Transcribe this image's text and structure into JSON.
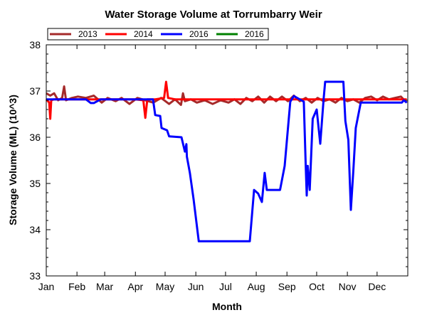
{
  "chart_data": {
    "type": "line",
    "title": "Water Storage Volume at Torrumbarry Weir",
    "xlabel": "Month",
    "ylabel": "Storage Volume (ML) (10^3)",
    "xlim": [
      0,
      365
    ],
    "ylim": [
      33,
      38
    ],
    "yticks": [
      33,
      34,
      35,
      36,
      37,
      38
    ],
    "xtick_labels": [
      "Jan",
      "Feb",
      "Mar",
      "Apr",
      "May",
      "Jun",
      "Jul",
      "Aug",
      "Sep",
      "Oct",
      "Nov",
      "Dec"
    ],
    "xtick_days": [
      0,
      31,
      59,
      90,
      120,
      151,
      181,
      212,
      243,
      273,
      304,
      334
    ],
    "grid": false,
    "legend_placement": "top-left",
    "series": [
      {
        "name": "2013",
        "color": "#a52a2a",
        "x": [
          0,
          4,
          8,
          12,
          16,
          18,
          20,
          26,
          32,
          40,
          48,
          56,
          62,
          70,
          76,
          84,
          92,
          100,
          108,
          116,
          124,
          130,
          136,
          138,
          140,
          146,
          152,
          160,
          168,
          176,
          184,
          190,
          196,
          202,
          208,
          214,
          220,
          226,
          232,
          238,
          244,
          250,
          256,
          262,
          268,
          274,
          280,
          286,
          292,
          298,
          304,
          310,
          316,
          322,
          328,
          334,
          340,
          346,
          352,
          358,
          364
        ],
        "y": [
          36.95,
          36.9,
          36.95,
          36.8,
          36.85,
          37.1,
          36.8,
          36.85,
          36.88,
          36.85,
          36.9,
          36.75,
          36.85,
          36.78,
          36.85,
          36.72,
          36.85,
          36.8,
          36.75,
          36.85,
          36.72,
          36.82,
          36.7,
          36.95,
          36.78,
          36.82,
          36.75,
          36.8,
          36.72,
          36.8,
          36.75,
          36.82,
          36.72,
          36.85,
          36.78,
          36.88,
          36.75,
          36.88,
          36.78,
          36.88,
          36.78,
          36.9,
          36.78,
          36.85,
          36.75,
          36.85,
          36.78,
          36.82,
          36.75,
          36.85,
          36.78,
          36.82,
          36.75,
          36.85,
          36.88,
          36.8,
          36.88,
          36.82,
          36.85,
          36.88,
          36.75
        ]
      },
      {
        "name": "2014",
        "color": "#ff0000",
        "x": [
          0,
          3,
          4,
          5,
          8,
          30,
          60,
          90,
          98,
          100,
          102,
          110,
          119,
          121,
          123,
          130,
          160,
          200,
          240,
          280,
          320,
          364
        ],
        "y": [
          36.82,
          36.75,
          36.4,
          36.8,
          36.82,
          36.82,
          36.82,
          36.82,
          36.8,
          36.42,
          36.82,
          36.82,
          36.85,
          37.2,
          36.85,
          36.82,
          36.82,
          36.82,
          36.82,
          36.82,
          36.82,
          36.82
        ]
      },
      {
        "name": "2016",
        "color": "#0000ff",
        "x": [
          0,
          40,
          45,
          48,
          55,
          60,
          80,
          107.8,
          110,
          115,
          116.4,
          122,
          124,
          136.5,
          140,
          141.5,
          142,
          145,
          148.7,
          154,
          205.5,
          209.8,
          214,
          217.7,
          220.5,
          222.7,
          226,
          236,
          240.7,
          246.4,
          250,
          260,
          262,
          263,
          264,
          266,
          269,
          273,
          276.6,
          280,
          281.6,
          300,
          302,
          305,
          307.5,
          310,
          312.5,
          317.5,
          359,
          361,
          364
        ],
        "y": [
          36.82,
          36.82,
          36.74,
          36.74,
          36.82,
          36.82,
          36.82,
          36.82,
          36.48,
          36.46,
          36.2,
          36.15,
          36.02,
          36.0,
          35.69,
          35.85,
          35.58,
          35.23,
          34.66,
          33.75,
          33.75,
          34.86,
          34.78,
          34.6,
          35.23,
          34.86,
          34.86,
          34.86,
          35.38,
          36.77,
          36.89,
          36.77,
          35.38,
          34.74,
          35.38,
          34.86,
          36.4,
          36.6,
          35.86,
          36.82,
          37.2,
          37.2,
          36.35,
          35.94,
          34.43,
          35.28,
          36.2,
          36.75,
          36.75,
          36.8,
          36.75
        ]
      },
      {
        "name": "2016",
        "color": "#008000",
        "x": [],
        "y": []
      }
    ]
  }
}
